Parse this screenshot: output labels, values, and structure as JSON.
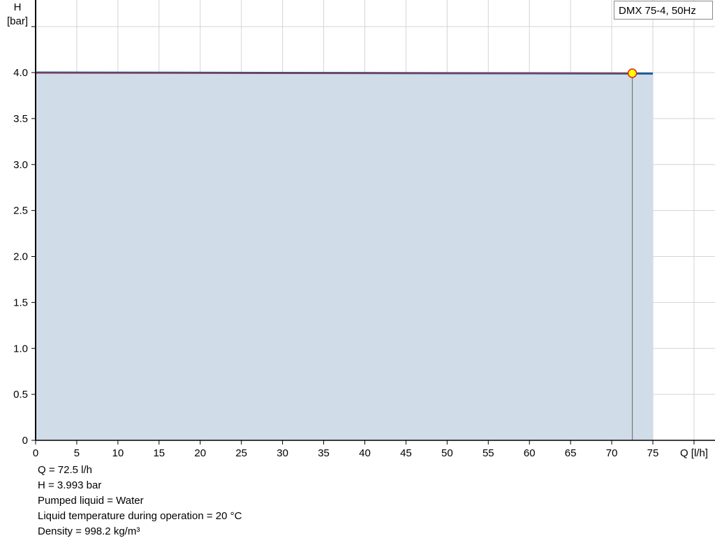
{
  "chart_data": {
    "type": "area",
    "title": "",
    "xlabel": "Q [l/h]",
    "ylabel_line1": "H",
    "ylabel_line2": "[bar]",
    "xlim": [
      0,
      80
    ],
    "ylim": [
      0,
      4.8
    ],
    "xticks": [
      0,
      5,
      10,
      15,
      20,
      25,
      30,
      35,
      40,
      45,
      50,
      55,
      60,
      65,
      70,
      75
    ],
    "yticks": [
      0,
      0.5,
      1.0,
      1.5,
      2.0,
      2.5,
      3.0,
      3.5,
      4.0
    ],
    "ytick_labels": [
      "0",
      "0.5",
      "1.0",
      "1.5",
      "2.0",
      "2.5",
      "3.0",
      "3.5",
      "4.0"
    ],
    "grid": true,
    "legend_position": "top-right",
    "series": [
      {
        "name": "DMX 75-4, 50Hz",
        "x": [
          0,
          75
        ],
        "y": [
          4.0,
          3.99
        ],
        "color": "#1f5a96",
        "fill": "#d0dce8"
      }
    ],
    "operating_point": {
      "x": 72.5,
      "y": 3.993,
      "fill": "#ffff00",
      "stroke": "#e02020"
    }
  },
  "info": [
    "Q = 72.5 l/h",
    "H = 3.993 bar",
    "Pumped liquid = Water",
    "Liquid temperature during operation = 20 °C",
    "Density = 998.2 kg/m³"
  ]
}
